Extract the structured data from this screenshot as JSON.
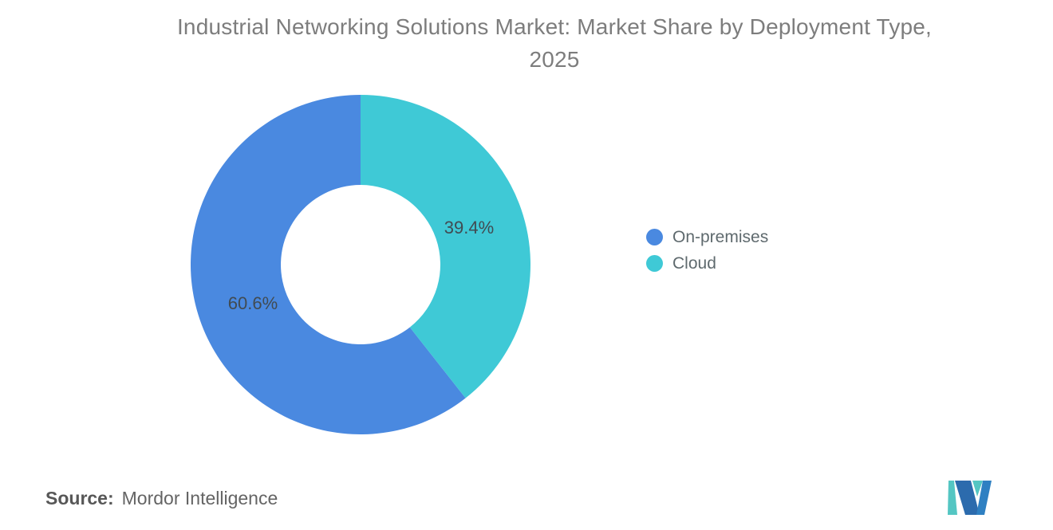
{
  "title": {
    "line1": "Industrial Networking Solutions Market: Market Share by Deployment Type,",
    "line2": "2025"
  },
  "chart_data": {
    "type": "pie",
    "subtype": "donut",
    "title": "Industrial Networking Solutions Market: Market Share by Deployment Type, 2025",
    "labels": [
      "On-premises",
      "Cloud"
    ],
    "values": [
      60.6,
      39.4
    ],
    "value_labels": [
      "60.6%",
      "39.4%"
    ],
    "colors": [
      "#4A89E0",
      "#3FC9D6"
    ],
    "label_color": "#414B52",
    "legend_position": "right",
    "inner_radius_ratio": 0.47,
    "start_angle_deg": -90,
    "direction": "counterclockwise"
  },
  "legend": {
    "items": [
      {
        "label": "On-premises",
        "color": "#4A89E0"
      },
      {
        "label": "Cloud",
        "color": "#3FC9D6"
      }
    ]
  },
  "footer": {
    "source_label": "Source:",
    "source_value": "Mordor Intelligence",
    "logo": {
      "name": "mordor-intelligence-logo",
      "colors": {
        "teal": "#54C6C3",
        "navy": "#2C6BAD",
        "blue": "#2F80C2"
      }
    }
  }
}
